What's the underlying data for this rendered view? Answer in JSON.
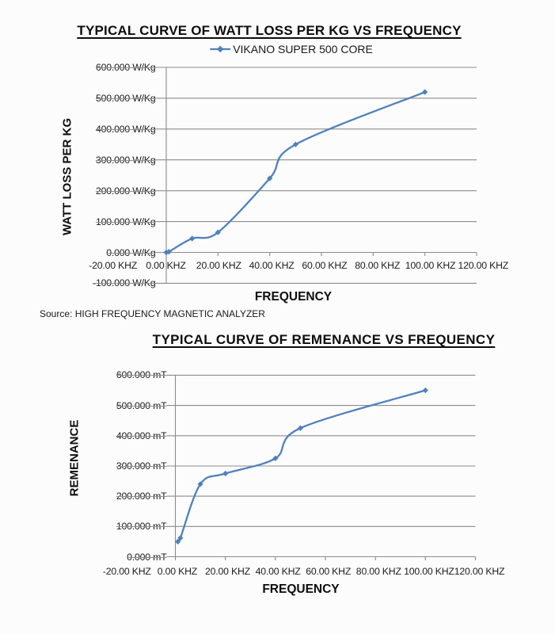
{
  "page": {
    "source_note": "Source: HIGH FREQUENCY MAGNETIC ANALYZER"
  },
  "colors": {
    "series": "#4f81bd",
    "grid": "#8c8c8c",
    "axis": "#8c8c8c",
    "tick_text": "#202020",
    "title_text": "#0d0d0d",
    "background": "#fcfcfc"
  },
  "chart_data": [
    {
      "type": "line",
      "title": "TYPICAL CURVE OF WATT LOSS PER KG VS FREQUENCY",
      "legend_entries": [
        "VIKANO SUPER 500 CORE"
      ],
      "legend_position": "top",
      "xlabel": "FREQUENCY",
      "ylabel": "WATT LOSS PER KG",
      "x_unit": "KHZ",
      "y_unit": "W/Kg",
      "xlim": [
        -20,
        120
      ],
      "ylim": [
        -100,
        600
      ],
      "grid": true,
      "smooth": true,
      "marker": "diamond",
      "x_ticks": [
        -20,
        0,
        20,
        40,
        60,
        80,
        100,
        120
      ],
      "x_tick_labels": [
        "-20.00 KHZ",
        "0.00 KHZ",
        "20.00 KHZ",
        "40.00 KHZ",
        "60.00 KHZ",
        "80.00 KHZ",
        "100.00 KHZ",
        "120.00 KHZ"
      ],
      "y_ticks": [
        600,
        500,
        400,
        300,
        200,
        100,
        0,
        -100
      ],
      "y_tick_labels": [
        "600.000 W/Kg",
        "500.000 W/Kg",
        "400.000 W/Kg",
        "300.000 W/Kg",
        "200.000 W/Kg",
        "100.000 W/Kg",
        "0.000 W/Kg",
        "-100.000 W/Kg"
      ],
      "series": [
        {
          "name": "VIKANO SUPER 500 CORE",
          "points": [
            [
              0,
              0
            ],
            [
              1,
              2
            ],
            [
              10,
              45
            ],
            [
              20,
              65
            ],
            [
              40,
              240
            ],
            [
              50,
              350
            ],
            [
              100,
              520
            ]
          ]
        }
      ]
    },
    {
      "type": "line",
      "title": "TYPICAL CURVE OF REMENANCE VS FREQUENCY",
      "legend_entries": [],
      "legend_position": "none",
      "xlabel": "FREQUENCY",
      "ylabel": "REMENANCE",
      "x_unit": "KHZ",
      "y_unit": "mT",
      "xlim": [
        -20,
        120
      ],
      "ylim": [
        0,
        600
      ],
      "grid": true,
      "smooth": true,
      "marker": "diamond",
      "x_ticks": [
        -20,
        0,
        20,
        40,
        60,
        80,
        100,
        120
      ],
      "x_tick_labels": [
        "-20.00 KHZ",
        "0.00 KHZ",
        "20.00 KHZ",
        "40.00 KHZ",
        "60.00 KHZ",
        "80.00 KHZ",
        "100.00 KHZ",
        "120.00 KHZ"
      ],
      "y_ticks": [
        600,
        500,
        400,
        300,
        200,
        100,
        0
      ],
      "y_tick_labels": [
        "600.000 mT",
        "500.000 mT",
        "400.000 mT",
        "300.000 mT",
        "200.000 mT",
        "100.000 mT",
        "0.000 mT"
      ],
      "series": [
        {
          "name": "",
          "points": [
            [
              1,
              50
            ],
            [
              2,
              62
            ],
            [
              10,
              240
            ],
            [
              20,
              275
            ],
            [
              40,
              325
            ],
            [
              50,
              425
            ],
            [
              100,
              550
            ]
          ]
        }
      ]
    }
  ]
}
